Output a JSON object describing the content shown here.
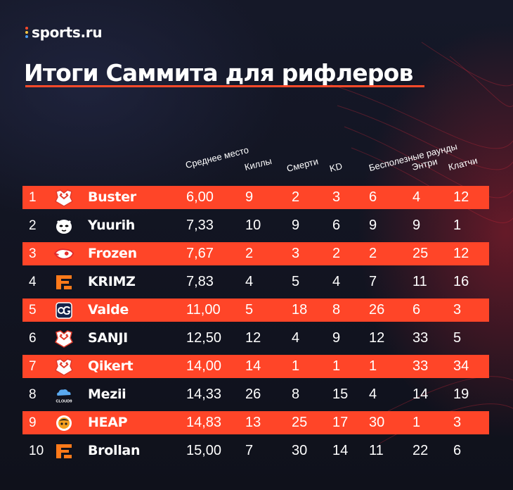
{
  "brand": {
    "name": "sports.ru",
    "dot_colors": [
      "#ff4a2a",
      "#f4c542",
      "#4a9cf2"
    ]
  },
  "title": "Итоги Саммита для рифлеров",
  "colors": {
    "accent": "#ff4528",
    "background": "#11131e",
    "text": "#ffffff"
  },
  "columns": [
    {
      "key": "avg_place",
      "label": "Среднее место"
    },
    {
      "key": "kills",
      "label": "Киллы"
    },
    {
      "key": "deaths",
      "label": "Смерти"
    },
    {
      "key": "kd",
      "label": "KD"
    },
    {
      "key": "useless_rounds",
      "label": "Бесполезные раунды"
    },
    {
      "key": "entry",
      "label": "Энтри"
    },
    {
      "key": "clutch",
      "label": "Клатчи"
    }
  ],
  "rows": [
    {
      "rank": "1",
      "team_icon": "virtus-pro-logo-icon",
      "player": "Buster",
      "avg_place": "6,00",
      "kills": "9",
      "deaths": "2",
      "kd": "3",
      "useless_rounds": "6",
      "entry": "4",
      "clutch": "12",
      "highlighted": true
    },
    {
      "rank": "2",
      "team_icon": "furia-logo-icon",
      "player": "Yuurih",
      "avg_place": "7,33",
      "kills": "10",
      "deaths": "9",
      "kd": "6",
      "useless_rounds": "9",
      "entry": "9",
      "clutch": "1",
      "highlighted": false
    },
    {
      "rank": "3",
      "team_icon": "mousesports-logo-icon",
      "player": "Frozen",
      "avg_place": "7,67",
      "kills": "2",
      "deaths": "3",
      "kd": "2",
      "useless_rounds": "2",
      "entry": "25",
      "clutch": "12",
      "highlighted": true
    },
    {
      "rank": "4",
      "team_icon": "fnatic-logo-icon",
      "player": "KRIMZ",
      "avg_place": "7,83",
      "kills": "4",
      "deaths": "5",
      "kd": "4",
      "useless_rounds": "7",
      "entry": "11",
      "clutch": "16",
      "highlighted": false
    },
    {
      "rank": "5",
      "team_icon": "og-logo-icon",
      "player": "Valde",
      "avg_place": "11,00",
      "kills": "5",
      "deaths": "18",
      "kd": "8",
      "useless_rounds": "26",
      "entry": "6",
      "clutch": "3",
      "highlighted": true
    },
    {
      "rank": "6",
      "team_icon": "virtus-pro-logo-icon",
      "player": "SANJI",
      "avg_place": "12,50",
      "kills": "12",
      "deaths": "4",
      "kd": "9",
      "useless_rounds": "12",
      "entry": "33",
      "clutch": "5",
      "highlighted": false
    },
    {
      "rank": "7",
      "team_icon": "virtus-pro-logo-icon",
      "player": "Qikert",
      "avg_place": "14,00",
      "kills": "14",
      "deaths": "1",
      "kd": "1",
      "useless_rounds": "1",
      "entry": "33",
      "clutch": "34",
      "highlighted": true
    },
    {
      "rank": "8",
      "team_icon": "cloud9-logo-icon",
      "player": "Mezii",
      "avg_place": "14,33",
      "kills": "26",
      "deaths": "8",
      "kd": "15",
      "useless_rounds": "4",
      "entry": "14",
      "clutch": "19",
      "highlighted": false
    },
    {
      "rank": "9",
      "team_icon": "heap-logo-icon",
      "player": "HEAP",
      "avg_place": "14,83",
      "kills": "13",
      "deaths": "25",
      "kd": "17",
      "useless_rounds": "30",
      "entry": "1",
      "clutch": "3",
      "highlighted": true
    },
    {
      "rank": "10",
      "team_icon": "fnatic-logo-icon",
      "player": "Brollan",
      "avg_place": "15,00",
      "kills": "7",
      "deaths": "30",
      "kd": "14",
      "useless_rounds": "11",
      "entry": "22",
      "clutch": "6",
      "highlighted": false
    }
  ]
}
